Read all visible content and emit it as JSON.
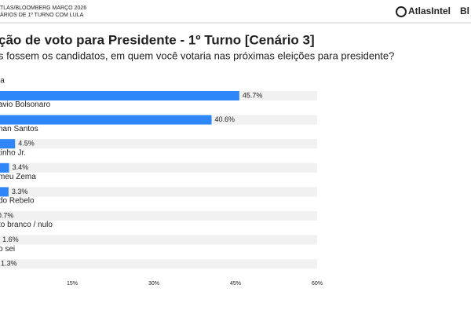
{
  "header": {
    "source_line1": "TLAS/BLOOMBERG MARÇO 2026",
    "source_line2": "ÁRIOS DE 1º TURNO COM LULA",
    "brand1": "AtlasIntel",
    "brand2": "Bl"
  },
  "chart_data": {
    "type": "hbar",
    "title": "ção de voto para Presidente - 1º Turno [Cenário 3]",
    "subtitle": "s fossem os candidatos, em quem você votaria nas próximas eleições para presidente?",
    "categories": [
      "la",
      "avio Bolsonaro",
      "nan Santos",
      "tinho Jr.",
      "meu Zema",
      "do Rebelo",
      "to branco / nulo",
      "o sei"
    ],
    "values": [
      45.7,
      40.6,
      4.5,
      3.4,
      3.3,
      0.7,
      1.6,
      1.3
    ],
    "value_labels": [
      "45.7%",
      "40.6%",
      "4.5%",
      "3.4%",
      "3.3%",
      "0.7%",
      "1.6%",
      "1.3%"
    ],
    "color": "#2f86f6",
    "xlim": [
      0,
      60
    ],
    "xticks": [
      {
        "value": 15,
        "label": "15%"
      },
      {
        "value": 30,
        "label": "30%"
      },
      {
        "value": 45,
        "label": "45%"
      },
      {
        "value": 60,
        "label": "60%"
      }
    ]
  }
}
